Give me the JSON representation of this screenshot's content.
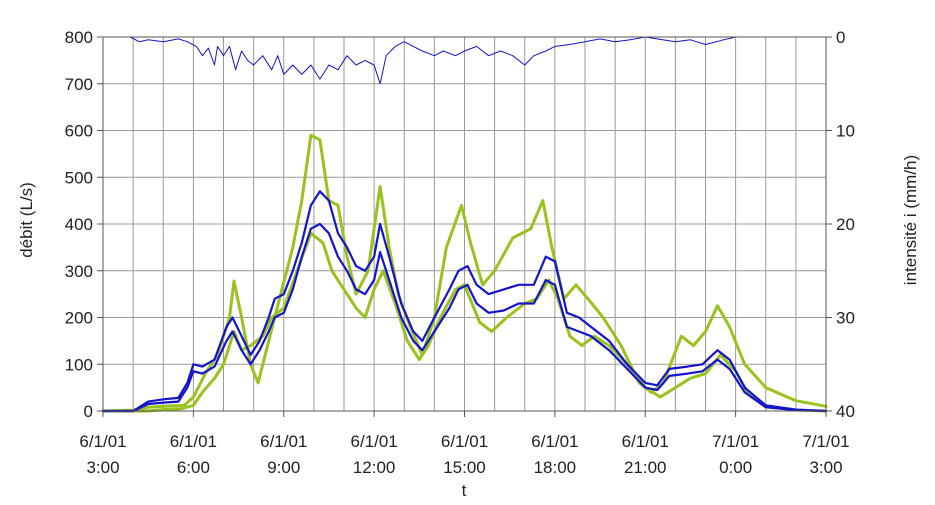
{
  "chart_data": {
    "type": "line",
    "xlabel": "t",
    "ylabel_left": "débit (L/s)",
    "ylabel_right": "intensité i (mm/h)",
    "x_range_hours": [
      3,
      27
    ],
    "ylim_left": [
      0,
      800
    ],
    "ylim_right_inverted": [
      0,
      40
    ],
    "grid": true,
    "x_ticks": [
      {
        "date": "6/1/01",
        "time": "3:00"
      },
      {
        "date": "6/1/01",
        "time": "6:00"
      },
      {
        "date": "6/1/01",
        "time": "9:00"
      },
      {
        "date": "6/1/01",
        "time": "12:00"
      },
      {
        "date": "6/1/01",
        "time": "15:00"
      },
      {
        "date": "6/1/01",
        "time": "18:00"
      },
      {
        "date": "6/1/01",
        "time": "21:00"
      },
      {
        "date": "7/1/01",
        "time": "0:00"
      },
      {
        "date": "7/1/01",
        "time": "3:00"
      }
    ],
    "y_left_ticks": [
      "0",
      "100",
      "200",
      "300",
      "400",
      "500",
      "600",
      "700",
      "800"
    ],
    "y_right_ticks": [
      "0",
      "10",
      "20",
      "30",
      "40"
    ],
    "series": [
      {
        "color": "#99c21c",
        "axis": "left",
        "points": [
          [
            3,
            0
          ],
          [
            4,
            2
          ],
          [
            4.5,
            8
          ],
          [
            5,
            10
          ],
          [
            5.7,
            12
          ],
          [
            6,
            30
          ],
          [
            6.4,
            80
          ],
          [
            6.8,
            120
          ],
          [
            7.2,
            200
          ],
          [
            7.35,
            278
          ],
          [
            7.6,
            200
          ],
          [
            7.9,
            100
          ],
          [
            8.15,
            60
          ],
          [
            8.5,
            150
          ],
          [
            8.9,
            250
          ],
          [
            9.3,
            350
          ],
          [
            9.6,
            450
          ],
          [
            9.9,
            590
          ],
          [
            10.2,
            580
          ],
          [
            10.5,
            450
          ],
          [
            10.8,
            440
          ],
          [
            11.1,
            330
          ],
          [
            11.4,
            250
          ],
          [
            11.8,
            300
          ],
          [
            12.2,
            480
          ],
          [
            12.5,
            350
          ],
          [
            12.8,
            250
          ],
          [
            13.2,
            180
          ],
          [
            13.6,
            120
          ],
          [
            14,
            200
          ],
          [
            14.4,
            350
          ],
          [
            14.9,
            440
          ],
          [
            15.2,
            360
          ],
          [
            15.6,
            270
          ],
          [
            16,
            300
          ],
          [
            16.6,
            370
          ],
          [
            17.2,
            390
          ],
          [
            17.6,
            450
          ],
          [
            17.9,
            350
          ],
          [
            18.3,
            240
          ],
          [
            18.7,
            270
          ],
          [
            19.1,
            240
          ],
          [
            19.6,
            200
          ],
          [
            20.2,
            140
          ],
          [
            20.8,
            60
          ],
          [
            21.2,
            40
          ],
          [
            21.6,
            60
          ],
          [
            22.2,
            160
          ],
          [
            22.6,
            140
          ],
          [
            23,
            170
          ],
          [
            23.4,
            225
          ],
          [
            23.8,
            180
          ],
          [
            24.3,
            100
          ],
          [
            25,
            50
          ],
          [
            26,
            22
          ],
          [
            27,
            10
          ]
        ]
      },
      {
        "color": "#99c21c",
        "axis": "left",
        "points": [
          [
            3,
            0
          ],
          [
            4.5,
            0
          ],
          [
            5,
            3
          ],
          [
            5.6,
            5
          ],
          [
            6,
            12
          ],
          [
            6.3,
            40
          ],
          [
            6.7,
            70
          ],
          [
            7,
            100
          ],
          [
            7.35,
            170
          ],
          [
            7.6,
            130
          ],
          [
            7.9,
            140
          ],
          [
            8.3,
            160
          ],
          [
            8.6,
            200
          ],
          [
            9,
            220
          ],
          [
            9.5,
            310
          ],
          [
            9.9,
            380
          ],
          [
            10.3,
            360
          ],
          [
            10.6,
            300
          ],
          [
            11,
            260
          ],
          [
            11.4,
            220
          ],
          [
            11.7,
            200
          ],
          [
            12,
            260
          ],
          [
            12.3,
            300
          ],
          [
            12.7,
            230
          ],
          [
            13.1,
            150
          ],
          [
            13.5,
            110
          ],
          [
            13.8,
            140
          ],
          [
            14.2,
            200
          ],
          [
            14.7,
            260
          ],
          [
            15,
            270
          ],
          [
            15.5,
            190
          ],
          [
            15.9,
            170
          ],
          [
            16.4,
            200
          ],
          [
            17,
            230
          ],
          [
            17.4,
            240
          ],
          [
            17.8,
            280
          ],
          [
            18.1,
            240
          ],
          [
            18.5,
            160
          ],
          [
            18.9,
            140
          ],
          [
            19.3,
            160
          ],
          [
            19.8,
            140
          ],
          [
            20.4,
            100
          ],
          [
            21,
            50
          ],
          [
            21.5,
            30
          ],
          [
            22,
            50
          ],
          [
            22.5,
            70
          ],
          [
            23,
            80
          ],
          [
            23.5,
            120
          ],
          [
            24,
            85
          ],
          [
            24.4,
            40
          ],
          [
            25,
            10
          ],
          [
            26,
            2
          ],
          [
            27,
            0
          ]
        ]
      },
      {
        "color": "#1414cc",
        "axis": "left",
        "points": [
          [
            3,
            0
          ],
          [
            4,
            0
          ],
          [
            4.5,
            20
          ],
          [
            5,
            25
          ],
          [
            5.5,
            28
          ],
          [
            5.8,
            60
          ],
          [
            6,
            100
          ],
          [
            6.3,
            95
          ],
          [
            6.7,
            110
          ],
          [
            7.1,
            180
          ],
          [
            7.3,
            200
          ],
          [
            7.6,
            160
          ],
          [
            7.9,
            120
          ],
          [
            8.2,
            150
          ],
          [
            8.5,
            200
          ],
          [
            8.7,
            240
          ],
          [
            9,
            250
          ],
          [
            9.3,
            300
          ],
          [
            9.6,
            360
          ],
          [
            9.9,
            440
          ],
          [
            10.2,
            470
          ],
          [
            10.5,
            450
          ],
          [
            10.8,
            380
          ],
          [
            11.1,
            350
          ],
          [
            11.4,
            310
          ],
          [
            11.7,
            300
          ],
          [
            12,
            330
          ],
          [
            12.2,
            400
          ],
          [
            12.5,
            330
          ],
          [
            12.9,
            230
          ],
          [
            13.3,
            170
          ],
          [
            13.6,
            150
          ],
          [
            14,
            200
          ],
          [
            14.5,
            260
          ],
          [
            14.8,
            300
          ],
          [
            15.1,
            310
          ],
          [
            15.4,
            270
          ],
          [
            15.8,
            250
          ],
          [
            16.3,
            260
          ],
          [
            16.8,
            270
          ],
          [
            17.3,
            270
          ],
          [
            17.7,
            330
          ],
          [
            18,
            320
          ],
          [
            18.4,
            210
          ],
          [
            18.8,
            200
          ],
          [
            19.2,
            180
          ],
          [
            19.8,
            150
          ],
          [
            20.4,
            100
          ],
          [
            21,
            60
          ],
          [
            21.4,
            55
          ],
          [
            21.8,
            90
          ],
          [
            22.4,
            95
          ],
          [
            22.9,
            100
          ],
          [
            23.4,
            130
          ],
          [
            23.8,
            110
          ],
          [
            24.3,
            50
          ],
          [
            25,
            12
          ],
          [
            26,
            3
          ],
          [
            27,
            0
          ]
        ]
      },
      {
        "color": "#1414cc",
        "axis": "left",
        "points": [
          [
            3,
            0
          ],
          [
            4,
            0
          ],
          [
            4.5,
            15
          ],
          [
            5,
            18
          ],
          [
            5.5,
            20
          ],
          [
            5.8,
            50
          ],
          [
            6,
            85
          ],
          [
            6.3,
            80
          ],
          [
            6.7,
            95
          ],
          [
            7.1,
            150
          ],
          [
            7.3,
            170
          ],
          [
            7.6,
            130
          ],
          [
            7.9,
            100
          ],
          [
            8.2,
            130
          ],
          [
            8.5,
            170
          ],
          [
            8.7,
            200
          ],
          [
            9,
            210
          ],
          [
            9.3,
            260
          ],
          [
            9.6,
            330
          ],
          [
            9.9,
            390
          ],
          [
            10.2,
            400
          ],
          [
            10.5,
            380
          ],
          [
            10.8,
            330
          ],
          [
            11.1,
            300
          ],
          [
            11.4,
            260
          ],
          [
            11.7,
            250
          ],
          [
            12,
            280
          ],
          [
            12.2,
            340
          ],
          [
            12.5,
            280
          ],
          [
            12.9,
            200
          ],
          [
            13.3,
            150
          ],
          [
            13.6,
            130
          ],
          [
            14,
            170
          ],
          [
            14.5,
            220
          ],
          [
            14.8,
            260
          ],
          [
            15.1,
            270
          ],
          [
            15.4,
            230
          ],
          [
            15.8,
            210
          ],
          [
            16.3,
            215
          ],
          [
            16.8,
            230
          ],
          [
            17.3,
            230
          ],
          [
            17.7,
            280
          ],
          [
            18,
            270
          ],
          [
            18.4,
            180
          ],
          [
            18.8,
            170
          ],
          [
            19.2,
            160
          ],
          [
            19.8,
            130
          ],
          [
            20.4,
            90
          ],
          [
            21,
            50
          ],
          [
            21.4,
            45
          ],
          [
            21.8,
            75
          ],
          [
            22.4,
            80
          ],
          [
            22.9,
            85
          ],
          [
            23.4,
            110
          ],
          [
            23.8,
            90
          ],
          [
            24.3,
            40
          ],
          [
            25,
            8
          ],
          [
            26,
            2
          ],
          [
            27,
            0
          ]
        ]
      },
      {
        "color": "#1414cc",
        "axis": "right",
        "points": [
          [
            3,
            0
          ],
          [
            3.9,
            0
          ],
          [
            4.2,
            0.5
          ],
          [
            4.5,
            0.3
          ],
          [
            5,
            0.5
          ],
          [
            5.5,
            0.2
          ],
          [
            5.8,
            0.5
          ],
          [
            6.1,
            1
          ],
          [
            6.3,
            2
          ],
          [
            6.5,
            1.2
          ],
          [
            6.7,
            3
          ],
          [
            6.8,
            1
          ],
          [
            7,
            2
          ],
          [
            7.2,
            1
          ],
          [
            7.4,
            3.5
          ],
          [
            7.6,
            1.5
          ],
          [
            7.8,
            2.5
          ],
          [
            8,
            3
          ],
          [
            8.3,
            2
          ],
          [
            8.6,
            3.5
          ],
          [
            8.8,
            2
          ],
          [
            9,
            4
          ],
          [
            9.3,
            3
          ],
          [
            9.6,
            4
          ],
          [
            9.9,
            3
          ],
          [
            10.2,
            4.5
          ],
          [
            10.5,
            3
          ],
          [
            10.8,
            3.5
          ],
          [
            11.1,
            2
          ],
          [
            11.4,
            3
          ],
          [
            11.7,
            2.5
          ],
          [
            12,
            3
          ],
          [
            12.2,
            5
          ],
          [
            12.4,
            2
          ],
          [
            12.7,
            1
          ],
          [
            13,
            0.5
          ],
          [
            13.3,
            1
          ],
          [
            13.6,
            1.5
          ],
          [
            14,
            2
          ],
          [
            14.3,
            1.5
          ],
          [
            14.7,
            2
          ],
          [
            15,
            1.5
          ],
          [
            15.4,
            1
          ],
          [
            15.8,
            2
          ],
          [
            16.2,
            1.5
          ],
          [
            16.6,
            2
          ],
          [
            17,
            3
          ],
          [
            17.3,
            2
          ],
          [
            17.7,
            1.5
          ],
          [
            18,
            1
          ],
          [
            18.5,
            0.8
          ],
          [
            19,
            0.5
          ],
          [
            19.5,
            0.2
          ],
          [
            20,
            0.5
          ],
          [
            20.5,
            0.3
          ],
          [
            21,
            0
          ],
          [
            22,
            0.5
          ],
          [
            22.5,
            0.3
          ],
          [
            23,
            0.8
          ],
          [
            23.6,
            0.3
          ],
          [
            24,
            0
          ],
          [
            25,
            0
          ],
          [
            27,
            0
          ]
        ]
      }
    ]
  }
}
